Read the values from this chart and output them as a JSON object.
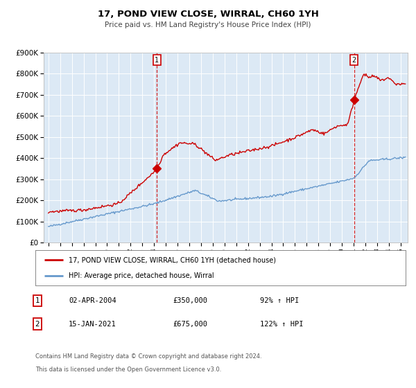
{
  "title": "17, POND VIEW CLOSE, WIRRAL, CH60 1YH",
  "subtitle": "Price paid vs. HM Land Registry's House Price Index (HPI)",
  "ylim": [
    0,
    900000
  ],
  "yticks": [
    0,
    100000,
    200000,
    300000,
    400000,
    500000,
    600000,
    700000,
    800000,
    900000
  ],
  "ytick_labels": [
    "£0",
    "£100K",
    "£200K",
    "£300K",
    "£400K",
    "£500K",
    "£600K",
    "£700K",
    "£800K",
    "£900K"
  ],
  "xlim_start": 1994.6,
  "xlim_end": 2025.6,
  "background_color": "#ffffff",
  "plot_bg_color": "#dce9f5",
  "grid_color": "#ffffff",
  "red_line_color": "#cc0000",
  "blue_line_color": "#6699cc",
  "sale1_x": 2004.25,
  "sale1_y": 350000,
  "sale2_x": 2021.04,
  "sale2_y": 675000,
  "legend_label1": "17, POND VIEW CLOSE, WIRRAL, CH60 1YH (detached house)",
  "legend_label2": "HPI: Average price, detached house, Wirral",
  "sale1_date": "02-APR-2004",
  "sale1_price": "£350,000",
  "sale1_hpi": "92% ↑ HPI",
  "sale2_date": "15-JAN-2021",
  "sale2_price": "£675,000",
  "sale2_hpi": "122% ↑ HPI",
  "footer1": "Contains HM Land Registry data © Crown copyright and database right 2024.",
  "footer2": "This data is licensed under the Open Government Licence v3.0."
}
